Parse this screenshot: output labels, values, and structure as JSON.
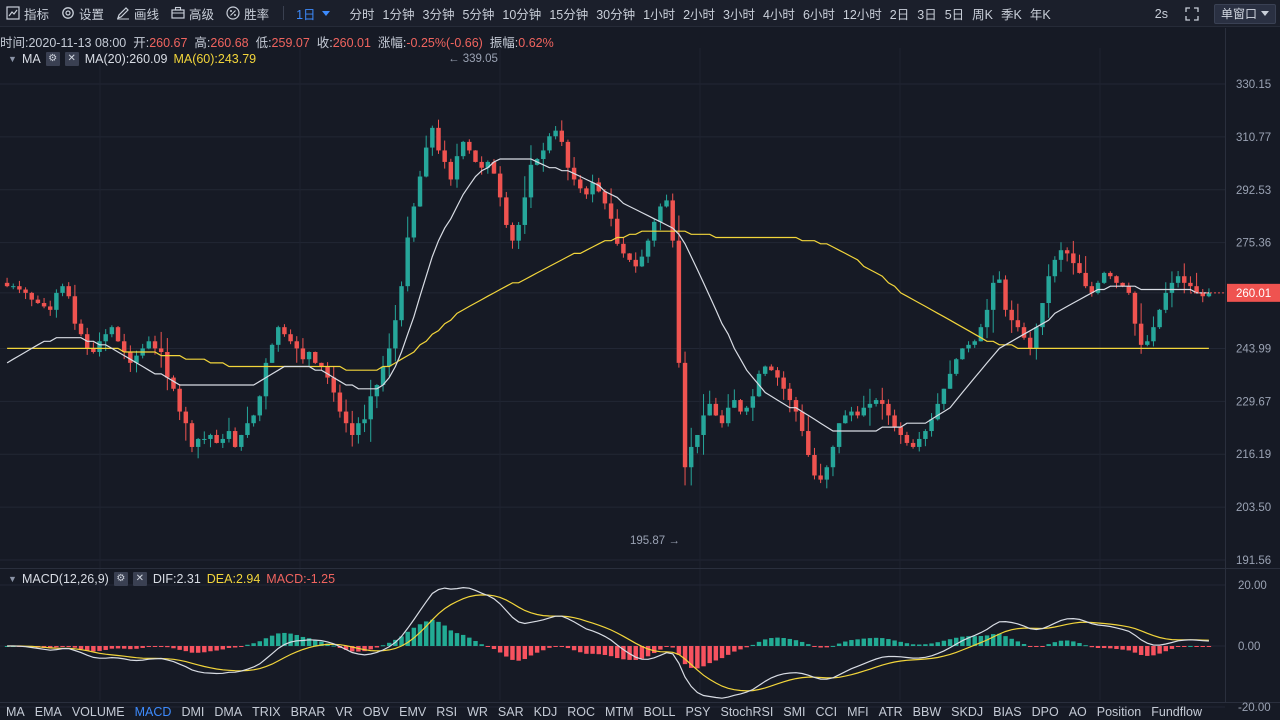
{
  "toolbar": {
    "indicators_label": "指标",
    "settings_label": "设置",
    "draw_label": "画线",
    "advanced_label": "高级",
    "winrate_label": "胜率",
    "periods": [
      "1日",
      "分时",
      "1分钟",
      "3分钟",
      "5分钟",
      "10分钟",
      "15分钟",
      "30分钟",
      "1小时",
      "2小时",
      "3小时",
      "4小时",
      "6小时",
      "12小时",
      "2日",
      "3日",
      "5日",
      "周K",
      "季K",
      "年K"
    ],
    "active_period": "1日",
    "refresh_rate": "2s",
    "window_mode": "单窗口"
  },
  "info": {
    "time_label": "时间:",
    "time": "2020-11-13 08:00",
    "open_label": "开:",
    "open": "260.67",
    "high_label": "高:",
    "high": "260.68",
    "low_label": "低:",
    "low": "259.07",
    "close_label": "收:",
    "close": "260.01",
    "change_label": "涨幅:",
    "change": "-0.25%(-0.66)",
    "amplitude_label": "振幅:",
    "amplitude": "0.62%"
  },
  "main_legend": {
    "name": "MA",
    "ma20": "MA(20):260.09",
    "ma60": "MA(60):243.79"
  },
  "macd_legend": {
    "name": "MACD(12,26,9)",
    "dif": "DIF:2.31",
    "dea": "DEA:2.94",
    "macd": "MACD:-1.25"
  },
  "price_axis": [
    "330.15",
    "310.77",
    "292.53",
    "275.36",
    "260.01",
    "243.99",
    "229.67",
    "216.19",
    "203.50",
    "191.56"
  ],
  "current_price": "260.01",
  "high_marker": "339.05",
  "low_marker": "195.87",
  "macd_axis": [
    "20.00",
    "0.00",
    "-20.00"
  ],
  "indicators": [
    "MA",
    "EMA",
    "VOLUME",
    "MACD",
    "DMI",
    "DMA",
    "TRIX",
    "BRAR",
    "VR",
    "OBV",
    "EMV",
    "RSI",
    "WR",
    "SAR",
    "KDJ",
    "ROC",
    "MTM",
    "BOLL",
    "PSY",
    "StochRSI",
    "SMI",
    "CCI",
    "MFI",
    "ATR",
    "BBW",
    "SKDJ",
    "BIAS",
    "DPO",
    "AO",
    "Position",
    "Fundflow"
  ],
  "active_indicator": "MACD",
  "colors": {
    "up": "#26a69a",
    "down": "#ef5350",
    "ma20": "#d8dce4",
    "ma60": "#f2d53b",
    "accent": "#3d8bfd",
    "background": "#161a25"
  },
  "chart_data": {
    "type": "candlestick",
    "close_series": [
      262,
      262,
      261,
      260,
      258,
      257,
      256,
      255,
      260,
      262,
      259,
      251,
      248,
      244,
      243,
      246,
      248,
      250,
      246,
      243,
      240,
      242,
      244,
      246,
      244,
      243,
      236,
      233,
      227,
      224,
      218,
      220,
      220,
      221,
      219,
      220,
      222,
      218,
      221,
      224,
      226,
      231,
      240,
      245,
      250,
      248,
      246,
      244,
      241,
      243,
      240,
      239,
      236,
      232,
      227,
      224,
      221,
      224,
      225,
      231,
      234,
      239,
      244,
      252,
      262,
      277,
      287,
      297,
      307,
      314,
      306,
      302,
      296,
      304,
      309,
      306,
      302,
      300,
      302,
      298,
      290,
      281,
      276,
      281,
      290,
      301,
      303,
      306,
      311,
      313,
      309,
      300,
      296,
      293,
      291,
      295,
      292,
      288,
      283,
      275,
      272,
      270,
      268,
      271,
      276,
      282,
      287,
      289,
      276,
      240,
      213,
      218,
      221,
      226,
      229,
      226,
      224,
      228,
      230,
      227,
      228,
      231,
      237,
      239,
      238,
      236,
      233,
      230,
      227,
      222,
      216,
      211,
      210,
      213,
      218,
      224,
      226,
      227,
      226,
      228,
      229,
      230,
      229,
      226,
      223,
      221,
      219,
      218,
      220,
      222,
      225,
      229,
      233,
      237,
      241,
      244,
      245,
      246,
      250,
      255,
      263,
      264,
      255,
      252,
      250,
      247,
      244,
      250,
      257,
      265,
      270,
      273,
      272,
      269,
      266,
      262,
      260,
      263,
      266,
      265,
      263,
      262,
      260,
      251,
      245,
      246,
      250,
      255,
      260,
      263,
      265,
      263,
      262,
      260,
      259,
      260
    ],
    "ma20": [
      240,
      241,
      242,
      243,
      244,
      245,
      246,
      246,
      247,
      247,
      247,
      247,
      247,
      246,
      246,
      245,
      245,
      244,
      243,
      242,
      241,
      240,
      239,
      238,
      237,
      237,
      236,
      235,
      234,
      234,
      234,
      234,
      234,
      234,
      234,
      234,
      234,
      234,
      234,
      234,
      234,
      235,
      236,
      237,
      238,
      239,
      239,
      239,
      239,
      239,
      238,
      238,
      237,
      236,
      235,
      234,
      234,
      233,
      233,
      233,
      233,
      234,
      236,
      239,
      243,
      248,
      253,
      259,
      265,
      271,
      276,
      280,
      283,
      287,
      291,
      294,
      297,
      299,
      300,
      302,
      303,
      303,
      303,
      303,
      303,
      303,
      302,
      301,
      300,
      300,
      299,
      299,
      298,
      297,
      296,
      295,
      294,
      292,
      291,
      290,
      288,
      287,
      286,
      285,
      284,
      283,
      282,
      281,
      280,
      278,
      275,
      271,
      267,
      263,
      259,
      255,
      251,
      248,
      244,
      241,
      238,
      236,
      234,
      232,
      231,
      230,
      229,
      228,
      228,
      227,
      226,
      225,
      224,
      223,
      222,
      222,
      222,
      222,
      222,
      222,
      222,
      222,
      223,
      223,
      223,
      223,
      224,
      224,
      224,
      224,
      225,
      226,
      227,
      228,
      230,
      232,
      234,
      236,
      238,
      240,
      242,
      244,
      245,
      246,
      247,
      248,
      249,
      250,
      251,
      252,
      254,
      255,
      256,
      257,
      258,
      259,
      260,
      261,
      261,
      262,
      262,
      262,
      262,
      262,
      261,
      261,
      261,
      261,
      261,
      261,
      261,
      261,
      261,
      260,
      260,
      260
    ],
    "ma60": [
      244,
      244,
      244,
      244,
      244,
      244,
      244,
      244,
      244,
      244,
      244,
      244,
      244,
      244,
      244,
      244,
      244,
      244,
      244,
      243,
      243,
      243,
      243,
      243,
      243,
      242,
      242,
      242,
      242,
      241,
      241,
      241,
      241,
      240,
      240,
      240,
      239,
      239,
      239,
      239,
      239,
      239,
      239,
      239,
      239,
      239,
      239,
      239,
      239,
      239,
      239,
      239,
      239,
      239,
      239,
      238,
      238,
      238,
      238,
      238,
      238,
      239,
      239,
      240,
      241,
      242,
      243,
      245,
      246,
      248,
      249,
      251,
      252,
      254,
      255,
      256,
      257,
      258,
      259,
      260,
      261,
      262,
      263,
      263,
      264,
      265,
      266,
      267,
      268,
      269,
      270,
      271,
      272,
      272,
      273,
      274,
      275,
      276,
      276,
      277,
      277,
      278,
      278,
      279,
      279,
      279,
      279,
      279,
      279,
      279,
      279,
      278,
      278,
      278,
      278,
      277,
      277,
      277,
      277,
      277,
      277,
      277,
      277,
      277,
      277,
      277,
      277,
      277,
      277,
      276,
      276,
      276,
      275,
      275,
      274,
      273,
      272,
      271,
      270,
      268,
      267,
      266,
      265,
      263,
      262,
      260,
      259,
      258,
      257,
      256,
      255,
      254,
      253,
      252,
      251,
      250,
      249,
      248,
      247,
      246,
      246,
      245,
      245,
      245,
      244,
      244,
      244,
      244,
      244,
      244,
      244,
      244,
      244,
      244,
      244,
      244,
      244,
      244,
      244,
      244,
      244,
      244,
      244,
      244,
      244,
      244,
      244,
      244,
      244,
      244,
      244,
      244,
      244,
      244,
      244,
      244
    ]
  }
}
